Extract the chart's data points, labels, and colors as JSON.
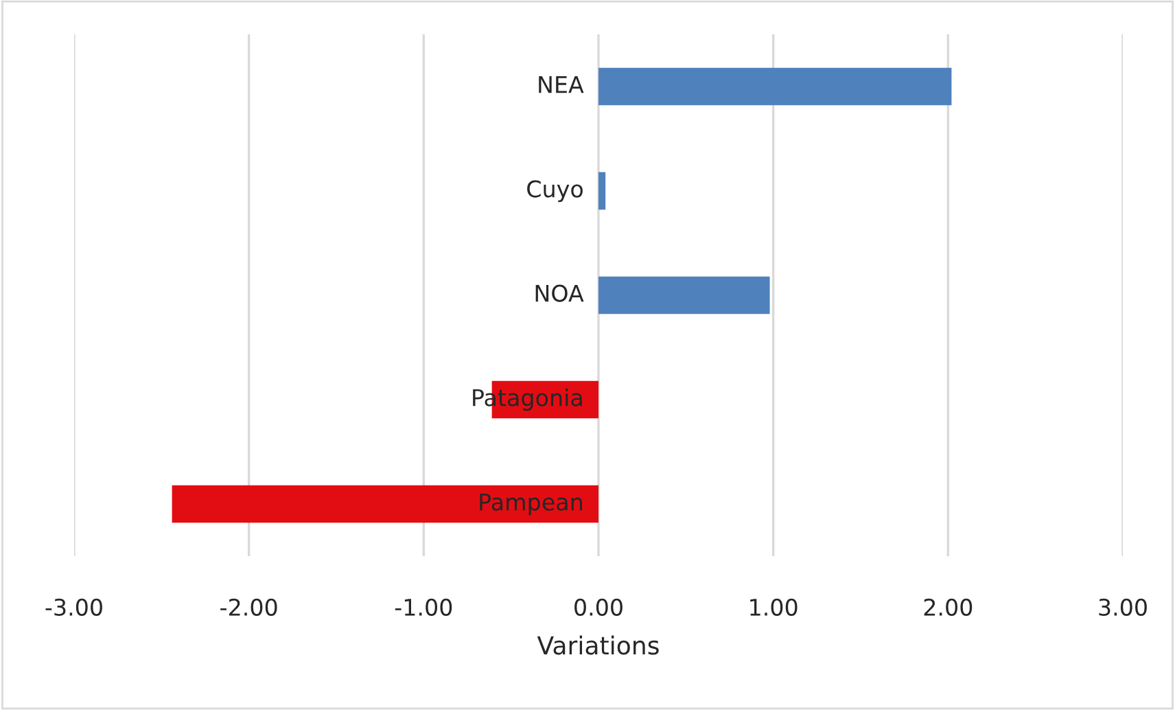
{
  "chart_data": {
    "type": "bar",
    "orientation": "horizontal",
    "xlabel": "Variations",
    "categories": [
      "NEA",
      "Cuyo",
      "NOA",
      "Patagonia",
      "Pampean"
    ],
    "values": [
      2.02,
      0.04,
      0.98,
      -0.61,
      -2.44
    ],
    "colors": [
      "#4f81bd",
      "#4f81bd",
      "#4f81bd",
      "#e20d13",
      "#e20d13"
    ],
    "xlim": [
      -3,
      3
    ],
    "xticks": [
      {
        "value": -3,
        "label": "-3.00"
      },
      {
        "value": -2,
        "label": "-2.00"
      },
      {
        "value": -1,
        "label": "-1.00"
      },
      {
        "value": 0,
        "label": "0.00"
      },
      {
        "value": 1,
        "label": "1.00"
      },
      {
        "value": 2,
        "label": "2.00"
      },
      {
        "value": 3,
        "label": "3.00"
      }
    ],
    "grid": "x",
    "legend": false
  }
}
